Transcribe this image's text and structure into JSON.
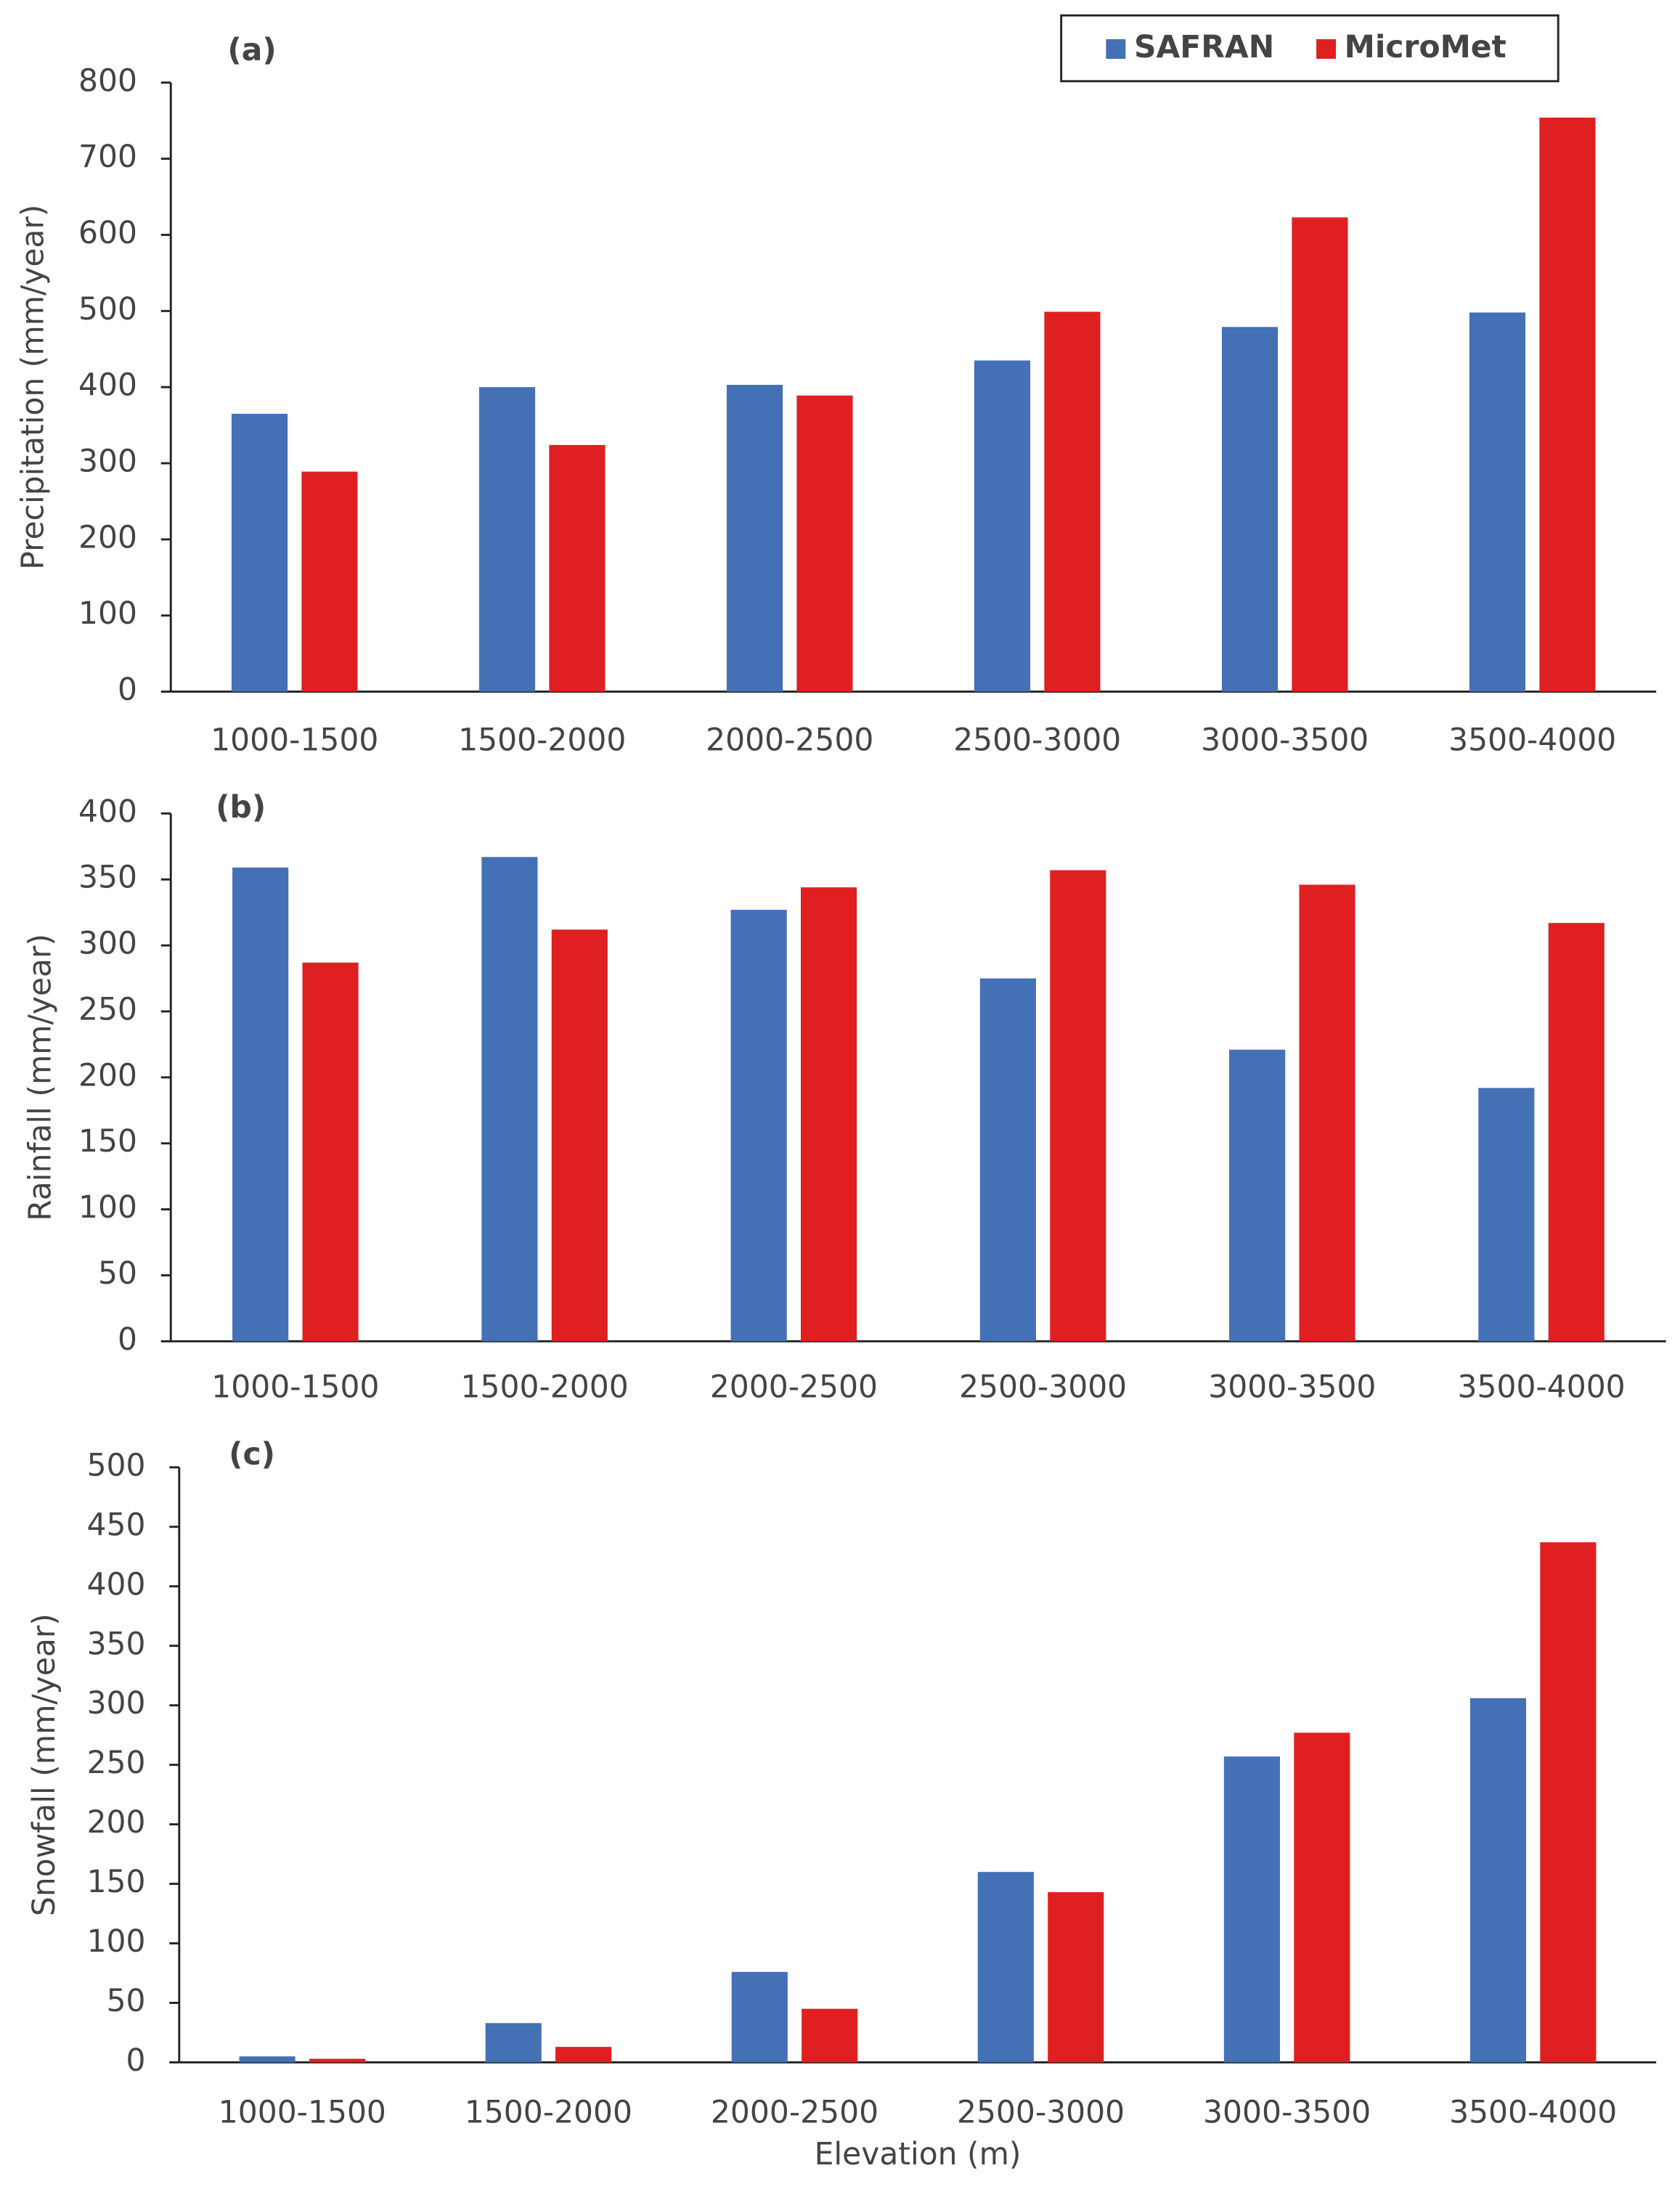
{
  "chart_data": [
    {
      "type": "bar",
      "title": "(a)",
      "y_label": "Precipitation (mm/year)",
      "categories": [
        "1000-1500",
        "1500-2000",
        "2000-2500",
        "2500-3000",
        "3000-3500",
        "3500-4000"
      ],
      "series": [
        {
          "name": "SAFRAN",
          "color": "#4470b5",
          "values": [
            365,
            400,
            403,
            435,
            479,
            498
          ]
        },
        {
          "name": "MicroMet",
          "color": "#e02020",
          "values": [
            289,
            324,
            389,
            499,
            623,
            754
          ]
        }
      ],
      "ylim": [
        0,
        800
      ],
      "yticks": [
        0,
        100,
        200,
        300,
        400,
        500,
        600,
        700,
        800
      ],
      "legend": "top-right"
    },
    {
      "type": "bar",
      "title": "(b)",
      "y_label": "Rainfall (mm/year)",
      "categories": [
        "1000-1500",
        "1500-2000",
        "2000-2500",
        "2500-3000",
        "3000-3500",
        "3500-4000"
      ],
      "series": [
        {
          "color": "#4470b5",
          "values": [
            359,
            367,
            327,
            275,
            221,
            192
          ]
        },
        {
          "color": "#e02020",
          "values": [
            287,
            312,
            344,
            357,
            346,
            317
          ]
        }
      ],
      "ylim": [
        0,
        400
      ],
      "yticks": [
        0,
        50,
        100,
        150,
        200,
        250,
        300,
        350,
        400
      ]
    },
    {
      "type": "bar",
      "title": "(c)",
      "y_label": "Snowfall (mm/year)",
      "x_label": "Elevation (m)",
      "categories": [
        "1000-1500",
        "1500-2000",
        "2000-2500",
        "2500-3000",
        "3000-3500",
        "3500-4000"
      ],
      "series": [
        {
          "color": "#4470b5",
          "values": [
            5,
            33,
            76,
            160,
            257,
            306
          ]
        },
        {
          "color": "#e02020",
          "values": [
            3,
            13,
            45,
            143,
            277,
            437
          ]
        }
      ],
      "ylim": [
        0,
        500
      ],
      "yticks": [
        0,
        50,
        100,
        150,
        200,
        250,
        300,
        350,
        400,
        450,
        500
      ]
    }
  ]
}
